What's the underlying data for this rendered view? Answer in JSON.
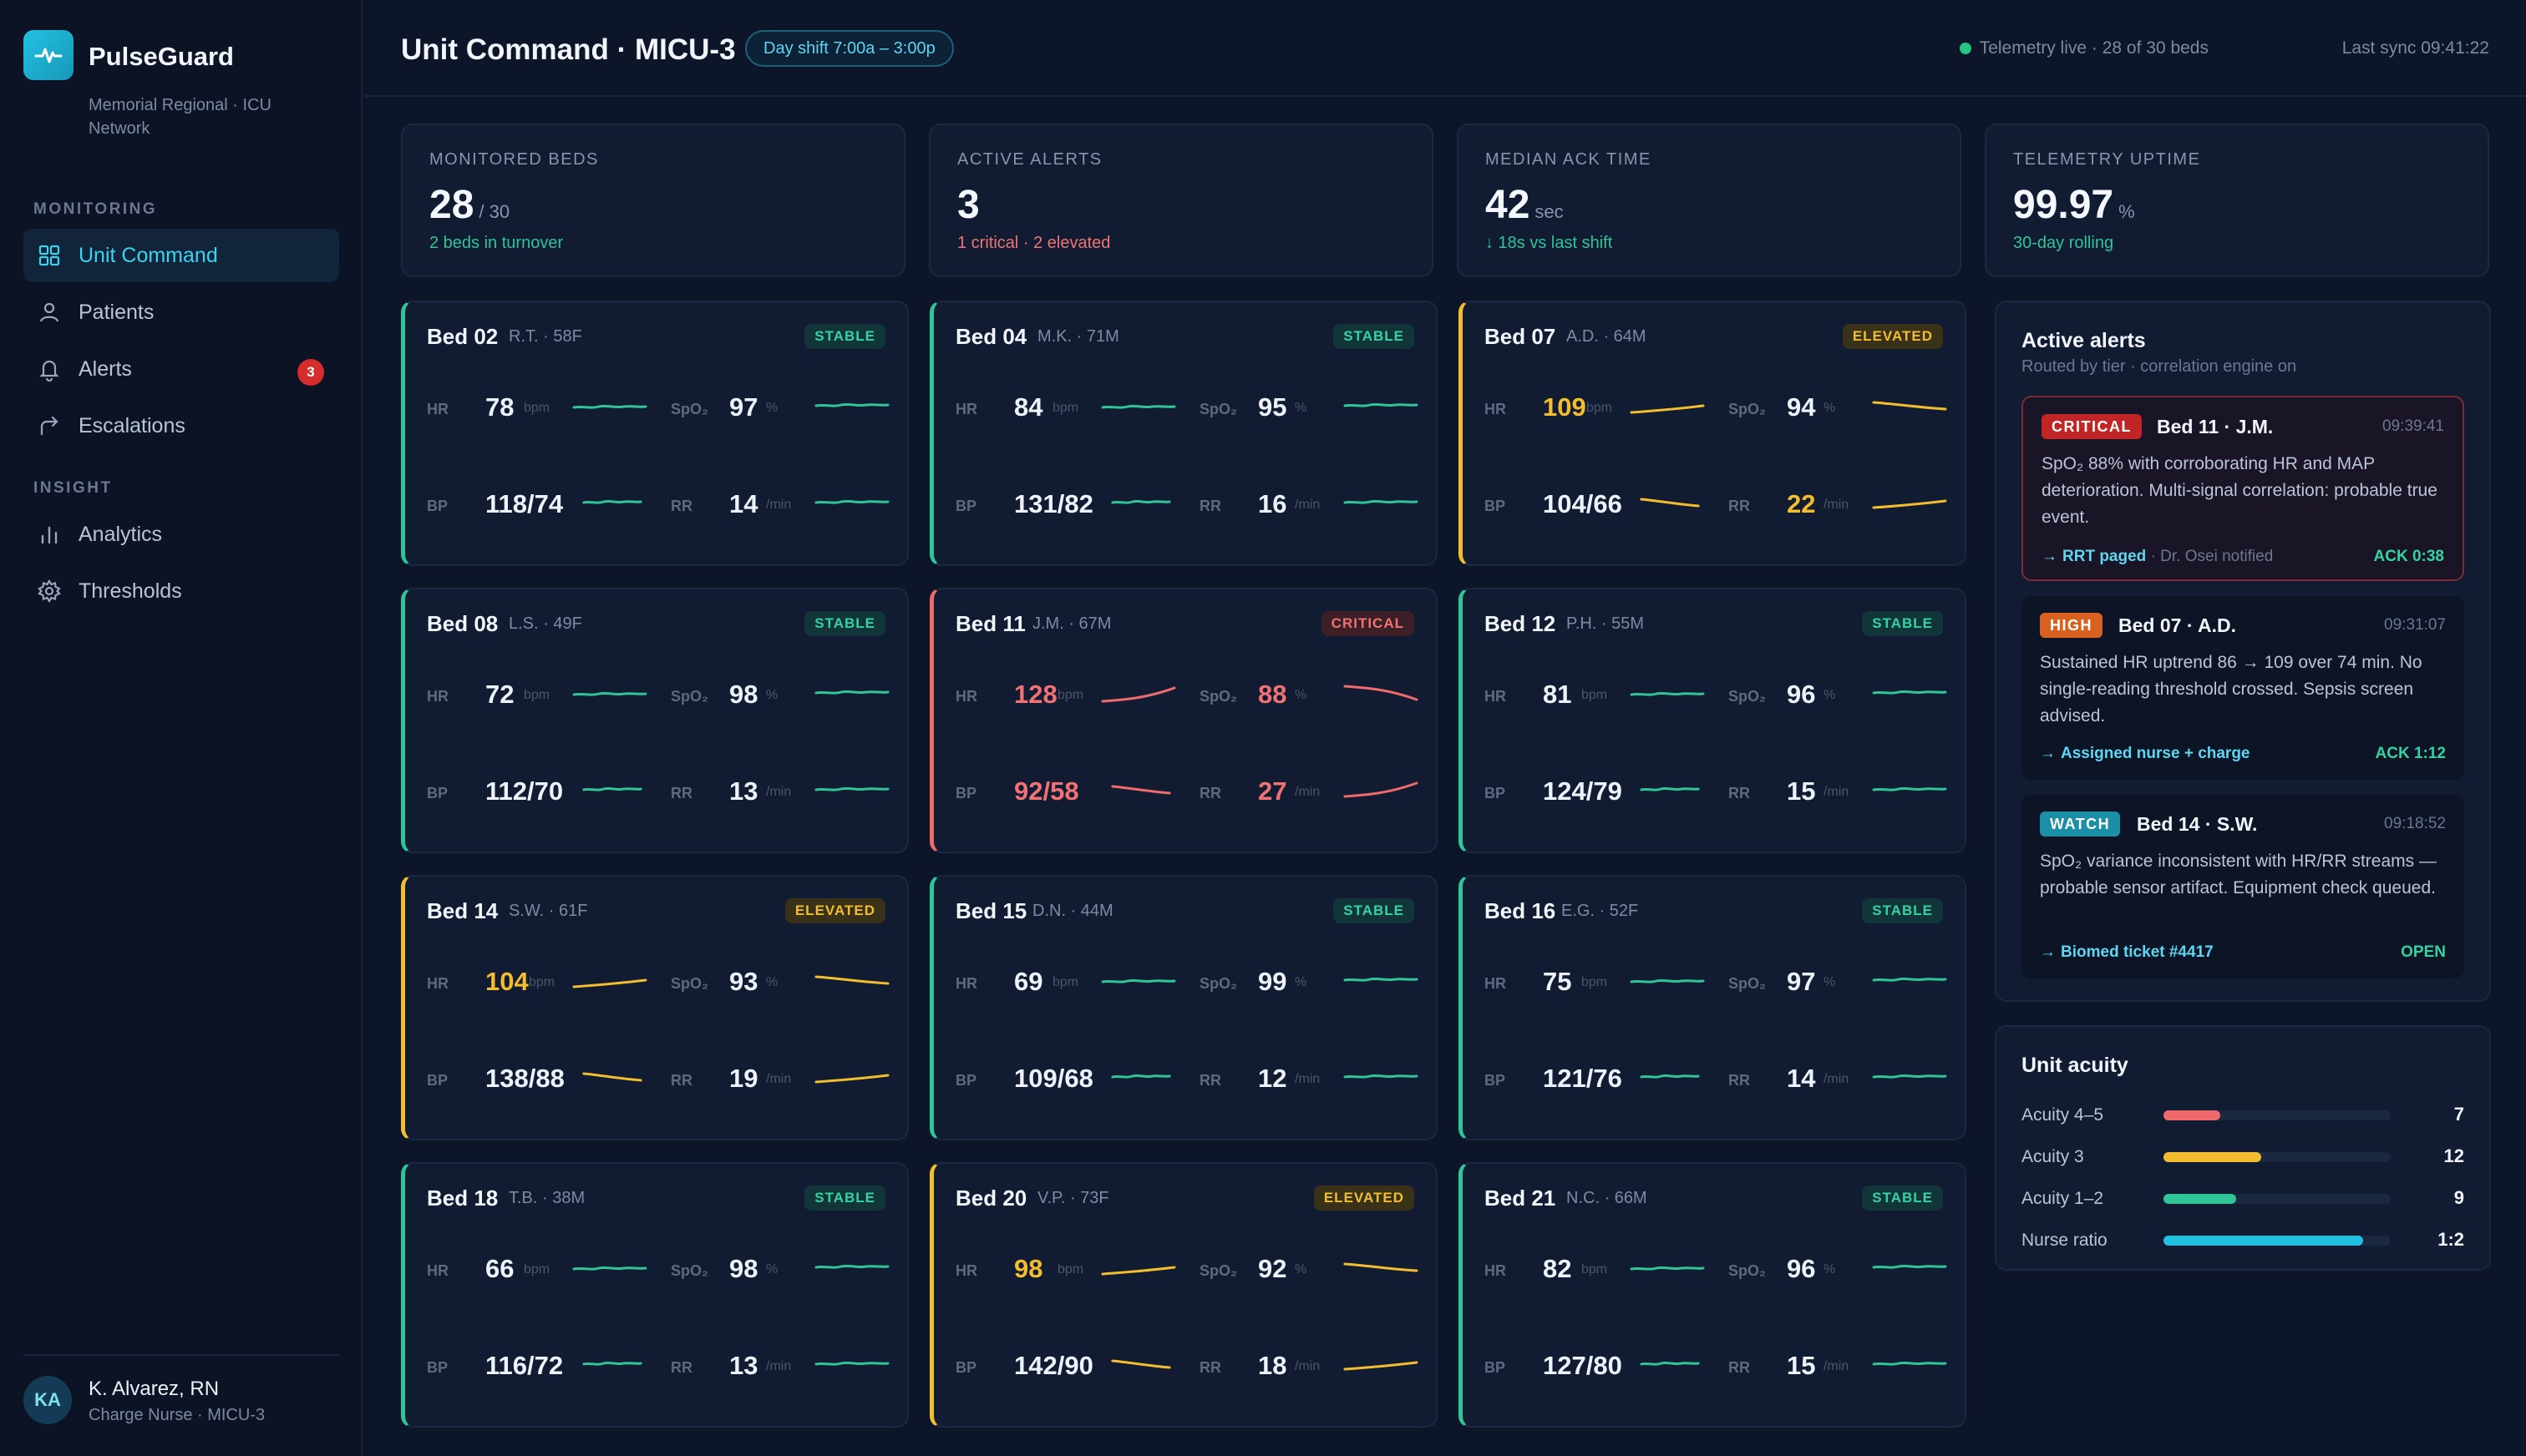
{
  "app": {
    "name": "PulseGuard",
    "subtitle": "Memorial Regional · ICU Network"
  },
  "nav": {
    "sections": [
      "MONITORING",
      "INSIGHT"
    ],
    "items": [
      {
        "label": "Unit Command",
        "icon": "grid-icon",
        "active": true
      },
      {
        "label": "Patients",
        "icon": "person-icon"
      },
      {
        "label": "Alerts",
        "icon": "bell-icon",
        "badge": "3"
      },
      {
        "label": "Escalations",
        "icon": "escalation-arrow-icon"
      },
      {
        "label": "Analytics",
        "icon": "bar-chart-icon"
      },
      {
        "label": "Thresholds",
        "icon": "gear-icon"
      }
    ]
  },
  "user": {
    "initials": "KA",
    "name": "K. Alvarez, RN",
    "role": "Charge Nurse · MICU-3"
  },
  "header": {
    "title": "Unit Command · MICU-3",
    "shift": "Day shift 7:00a – 3:00p",
    "telemetry": "Telemetry live · 28 of 30 beds",
    "sync": "Last sync 09:41:22"
  },
  "stats": [
    {
      "label": "MONITORED BEDS",
      "value": "28",
      "unit": "/ 30",
      "sub": "2 beds in turnover",
      "sub_color": "#2fc597"
    },
    {
      "label": "ACTIVE ALERTS",
      "value": "3",
      "unit": "",
      "sub": "1 critical · 2 elevated",
      "sub_color": "#f07272"
    },
    {
      "label": "MEDIAN ACK TIME",
      "value": "42",
      "unit": "sec",
      "sub": "↓ 18s vs last shift",
      "sub_color": "#2fc597"
    },
    {
      "label": "TELEMETRY UPTIME",
      "value": "99.97",
      "unit": "%",
      "sub": "30-day rolling",
      "sub_color": "#2fc597"
    }
  ],
  "vital_labels": {
    "hr": "HR",
    "spo2": "SpO₂",
    "bp": "BP",
    "rr": "RR",
    "hr_unit": "bpm",
    "spo2_unit": "%",
    "rr_unit": "/min"
  },
  "beds": [
    {
      "name": "Bed 02",
      "patient": "R.T. · 58F",
      "status": "STABLE",
      "hr": "78",
      "spo2": "97",
      "bp": "118/74",
      "rr": "14"
    },
    {
      "name": "Bed 04",
      "patient": "M.K. · 71M",
      "status": "STABLE",
      "hr": "84",
      "spo2": "95",
      "bp": "131/82",
      "rr": "16"
    },
    {
      "name": "Bed 07",
      "patient": "A.D. · 64M",
      "status": "ELEVATED",
      "hr": "109",
      "spo2": "94",
      "bp": "104/66",
      "rr": "22"
    },
    {
      "name": "Bed 08",
      "patient": "L.S. · 49F",
      "status": "STABLE",
      "hr": "72",
      "spo2": "98",
      "bp": "112/70",
      "rr": "13"
    },
    {
      "name": "Bed 11",
      "patient": "J.M. · 67M",
      "status": "CRITICAL",
      "hr": "128",
      "spo2": "88",
      "bp": "92/58",
      "rr": "27"
    },
    {
      "name": "Bed 12",
      "patient": "P.H. · 55M",
      "status": "STABLE",
      "hr": "81",
      "spo2": "96",
      "bp": "124/79",
      "rr": "15"
    },
    {
      "name": "Bed 14",
      "patient": "S.W. · 61F",
      "status": "ELEVATED",
      "hr": "104",
      "spo2": "93",
      "bp": "138/88",
      "rr": "19"
    },
    {
      "name": "Bed 15",
      "patient": "D.N. · 44M",
      "status": "STABLE",
      "hr": "69",
      "spo2": "99",
      "bp": "109/68",
      "rr": "12"
    },
    {
      "name": "Bed 16",
      "patient": "E.G. · 52F",
      "status": "STABLE",
      "hr": "75",
      "spo2": "97",
      "bp": "121/76",
      "rr": "14"
    },
    {
      "name": "Bed 18",
      "patient": "T.B. · 38M",
      "status": "STABLE",
      "hr": "66",
      "spo2": "98",
      "bp": "116/72",
      "rr": "13"
    },
    {
      "name": "Bed 20",
      "patient": "V.P. · 73F",
      "status": "ELEVATED",
      "hr": "98",
      "spo2": "92",
      "bp": "142/90",
      "rr": "18"
    },
    {
      "name": "Bed 21",
      "patient": "N.C. · 66M",
      "status": "STABLE",
      "hr": "82",
      "spo2": "96",
      "bp": "127/80",
      "rr": "15"
    }
  ],
  "alerts_panel": {
    "title": "Active alerts",
    "subtitle": "Routed by tier · correlation engine on",
    "items": [
      {
        "tag": "CRITICAL",
        "title": "Bed 11 · J.M.",
        "time": "09:39:41",
        "body": "SpO₂ 88% with corroborating HR and MAP deterioration. Multi-signal correlation: probable true event.",
        "link": "RRT paged",
        "meta": "· Dr. Osei notified",
        "ack": "ACK 0:38"
      },
      {
        "tag": "HIGH",
        "title": "Bed 07 · A.D.",
        "time": "09:31:07",
        "body": "Sustained HR uptrend 86 → 109 over 74 min. No single-reading threshold crossed. Sepsis screen advised.",
        "link": "Assigned nurse + charge",
        "meta": "",
        "ack": "ACK 1:12"
      },
      {
        "tag": "WATCH",
        "title": "Bed 14 · S.W.",
        "time": "09:18:52",
        "body": "SpO₂ variance inconsistent with HR/RR streams — probable sensor artifact. Equipment check queued.",
        "link": "Biomed ticket #4417",
        "meta": "",
        "ack": "OPEN"
      }
    ]
  },
  "acuity": {
    "title": "Unit acuity",
    "rows": [
      {
        "label": "Acuity 4–5",
        "value": "7",
        "fill": 0.25,
        "color": "#ef6a6a"
      },
      {
        "label": "Acuity 3",
        "value": "12",
        "fill": 0.43,
        "color": "#f2bd2e"
      },
      {
        "label": "Acuity 1–2",
        "value": "9",
        "fill": 0.32,
        "color": "#2fc597"
      },
      {
        "label": "Nurse ratio",
        "value": "1:2",
        "fill": 0.88,
        "color": "#22c1e2"
      }
    ]
  },
  "colors": {
    "accent": "#22c1e2",
    "stable": "#2fc597",
    "elevated": "#f2bd2e",
    "critical": "#ef6a6a"
  }
}
